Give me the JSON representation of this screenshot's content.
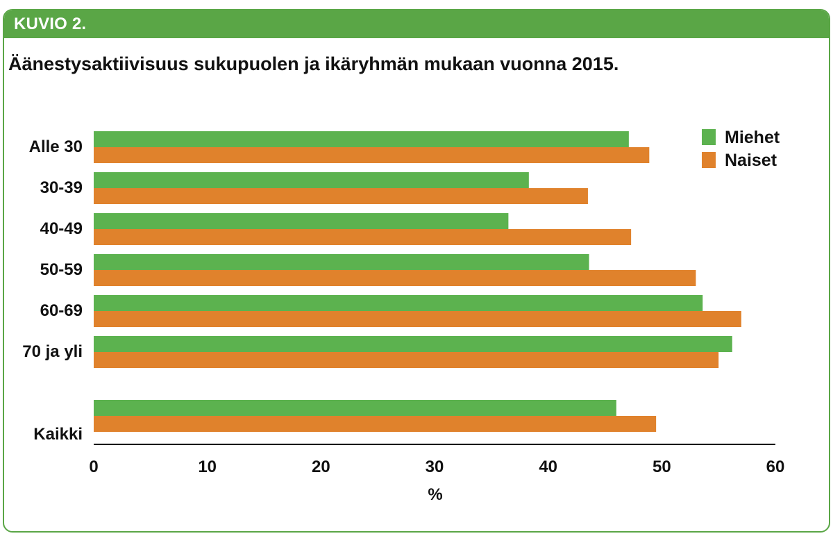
{
  "header": {
    "figure_label": "KUVIO 2."
  },
  "colors": {
    "frame_green": "#5aa646",
    "bar_green": "#5cb24f",
    "bar_orange": "#e0822c"
  },
  "chart_data": {
    "type": "bar",
    "orientation": "horizontal",
    "title": "Äänestysaktiivisuus sukupuolen ja ikäryhmän mukaan vuonna 2015.",
    "xlabel": "%",
    "ylabel": "",
    "xlim": [
      0,
      60
    ],
    "xticks": [
      0,
      10,
      20,
      30,
      40,
      50,
      60
    ],
    "grid": false,
    "legend_position": "top-right",
    "categories": [
      "Alle 30",
      "30-39",
      "40-49",
      "50-59",
      "60-69",
      "70 ja yli",
      "Kaikki"
    ],
    "series": [
      {
        "name": "Miehet",
        "color": "#5cb24f",
        "values": [
          47.1,
          38.3,
          36.5,
          43.6,
          53.6,
          56.2,
          46.0
        ]
      },
      {
        "name": "Naiset",
        "color": "#e0822c",
        "values": [
          48.9,
          43.5,
          47.3,
          53.0,
          57.0,
          55.0,
          49.5
        ]
      }
    ]
  }
}
